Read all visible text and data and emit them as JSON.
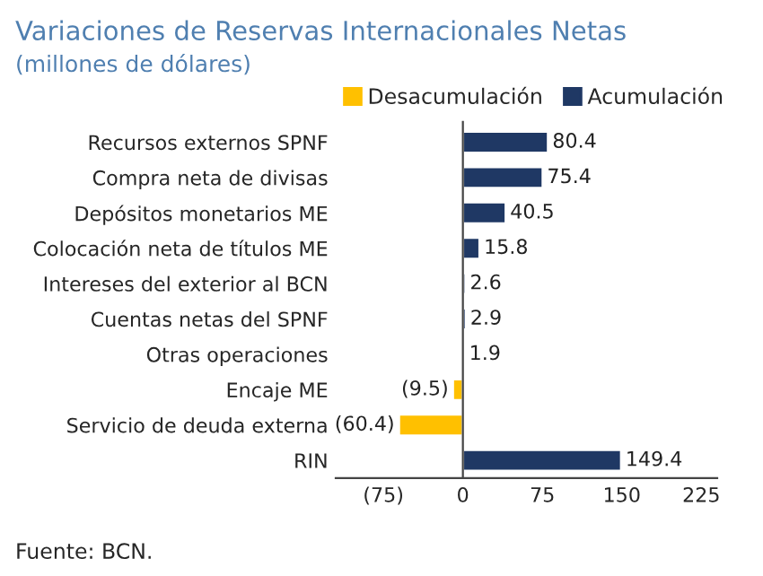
{
  "chart_data": {
    "type": "bar",
    "orientation": "horizontal",
    "stacked": true,
    "title": "Variaciones de Reservas Internacionales Netas",
    "subtitle": "(millones de dólares)",
    "categories": [
      "Recursos externos SPNF",
      "Compra neta de divisas",
      "Depósitos monetarios ME",
      "Colocación neta de títulos ME",
      "Intereses del exterior al BCN",
      "Cuentas netas del SPNF",
      "Otras operaciones",
      "Encaje ME",
      "Servicio de deuda externa",
      "RIN"
    ],
    "series": [
      {
        "name": "Desacumulación",
        "color": "#ffc000",
        "values": [
          null,
          null,
          null,
          null,
          null,
          null,
          null,
          -9.5,
          -60.4,
          null
        ],
        "value_labels": [
          null,
          null,
          null,
          null,
          null,
          null,
          null,
          "(9.5)",
          "(60.4)",
          null
        ]
      },
      {
        "name": "Acumulación",
        "color": "#1f3864",
        "values": [
          80.4,
          75.4,
          40.5,
          15.8,
          2.6,
          2.9,
          1.9,
          null,
          null,
          149.4
        ],
        "value_labels": [
          "80.4",
          "75.4",
          "40.5",
          "15.8",
          "2.6",
          "2.9",
          "1.9",
          null,
          null,
          "149.4"
        ]
      }
    ],
    "xlim": [
      -120,
      240
    ],
    "xticks": [
      {
        "value": -75,
        "label": "(75)"
      },
      0,
      75,
      150,
      225
    ],
    "legend": "top right",
    "grid": false,
    "ref_lines": [
      {
        "axis": "x",
        "value": 0,
        "color": "#444444"
      }
    ],
    "annotations": [
      "Fuente: BCN."
    ]
  }
}
